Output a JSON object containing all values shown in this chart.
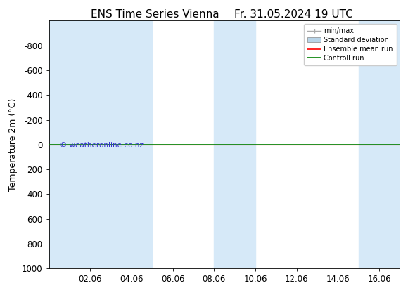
{
  "title_left": "ENS Time Series Vienna",
  "title_right": "Fr. 31.05.2024 19 UTC",
  "ylabel": "Temperature 2m (°C)",
  "xtick_labels": [
    "02.06",
    "04.06",
    "06.06",
    "08.06",
    "10.06",
    "12.06",
    "14.06",
    "16.06"
  ],
  "xtick_positions": [
    2,
    4,
    6,
    8,
    10,
    12,
    14,
    16
  ],
  "ylim_top": -1000,
  "ylim_bottom": 1000,
  "ytick_values": [
    -800,
    -600,
    -400,
    -200,
    0,
    200,
    400,
    600,
    800,
    1000
  ],
  "background_color": "#ffffff",
  "plot_bg_color": "#ffffff",
  "shaded_bands_x": [
    [
      0,
      3
    ],
    [
      3,
      5
    ],
    [
      8,
      10
    ],
    [
      15,
      17
    ]
  ],
  "shaded_color": "#d6e9f8",
  "control_run_y": 0,
  "ensemble_mean_y": 0,
  "watermark": "© weatheronline.co.nz",
  "watermark_color": "#3333cc",
  "legend_labels": [
    "min/max",
    "Standard deviation",
    "Ensemble mean run",
    "Controll run"
  ],
  "minmax_color": "#aaaaaa",
  "std_dev_color": "#b8d4e8",
  "ensemble_color": "#ff0000",
  "control_color": "#008000",
  "title_fontsize": 11,
  "axis_fontsize": 9,
  "tick_fontsize": 8.5,
  "xlim": [
    0,
    17
  ]
}
